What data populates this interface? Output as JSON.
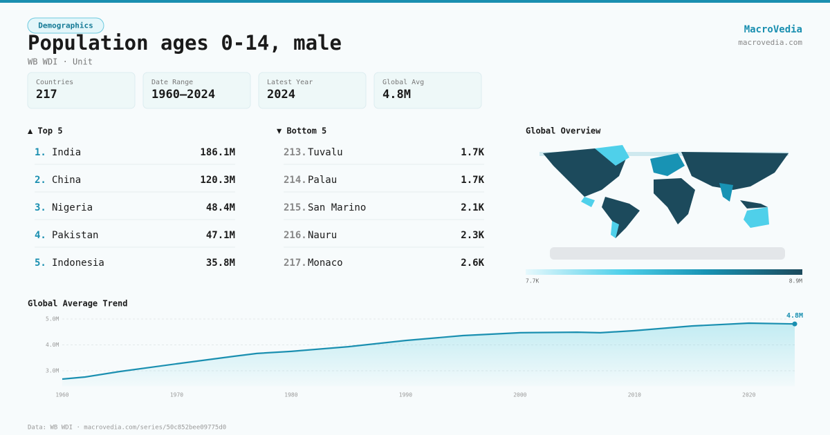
{
  "header": {
    "tag": "Demographics",
    "title": "Population ages 0-14, male",
    "subtitle": "WB WDI · Unit",
    "brand": "MacroVedia",
    "site": "macrovedia.com"
  },
  "stats": [
    {
      "label": "Countries",
      "value": "217"
    },
    {
      "label": "Date Range",
      "value": "1960–2024"
    },
    {
      "label": "Latest Year",
      "value": "2024"
    },
    {
      "label": "Global Avg",
      "value": "4.8M"
    }
  ],
  "top": {
    "title": "▲ Top 5",
    "rows": [
      {
        "rank": "1.",
        "name": "India",
        "value": "186.1M"
      },
      {
        "rank": "2.",
        "name": "China",
        "value": "120.3M"
      },
      {
        "rank": "3.",
        "name": "Nigeria",
        "value": "48.4M"
      },
      {
        "rank": "4.",
        "name": "Pakistan",
        "value": "47.1M"
      },
      {
        "rank": "5.",
        "name": "Indonesia",
        "value": "35.8M"
      }
    ]
  },
  "bottom": {
    "title": "▼ Bottom 5",
    "rows": [
      {
        "rank": "213.",
        "name": "Tuvalu",
        "value": "1.7K"
      },
      {
        "rank": "214.",
        "name": "Palau",
        "value": "1.7K"
      },
      {
        "rank": "215.",
        "name": "San Marino",
        "value": "2.1K"
      },
      {
        "rank": "216.",
        "name": "Nauru",
        "value": "2.3K"
      },
      {
        "rank": "217.",
        "name": "Monaco",
        "value": "2.6K"
      }
    ]
  },
  "map": {
    "title": "Global Overview",
    "min_label": "7.7K",
    "max_label": "8.9M"
  },
  "chart_data": {
    "type": "line",
    "title": "Global Average Trend",
    "color": "#1a8fb0",
    "x": [
      1960,
      1962,
      1965,
      1970,
      1975,
      1977,
      1980,
      1985,
      1990,
      1995,
      2000,
      2005,
      2007,
      2010,
      2015,
      2020,
      2024
    ],
    "values": [
      2.68,
      2.76,
      2.97,
      3.27,
      3.56,
      3.67,
      3.75,
      3.93,
      4.17,
      4.36,
      4.47,
      4.49,
      4.47,
      4.55,
      4.73,
      4.84,
      4.81
    ],
    "value_labels": [
      null,
      null,
      null,
      null,
      null,
      null,
      null,
      null,
      null,
      null,
      null,
      null,
      null,
      null,
      null,
      null,
      "4.8M"
    ],
    "xlim": [
      1960,
      2024
    ],
    "ylim": [
      2.4,
      5.2
    ],
    "xticks": [
      1960,
      1970,
      1980,
      1990,
      2000,
      2010,
      2020
    ],
    "yticks": [
      {
        "value": 3,
        "label": "3.0M"
      },
      {
        "value": 4,
        "label": "4.0M"
      },
      {
        "value": 5,
        "label": "5.0M"
      }
    ],
    "grid": true
  },
  "footer": "Data: WB WDI · macrovedia.com/series/50c852bee09775d0"
}
